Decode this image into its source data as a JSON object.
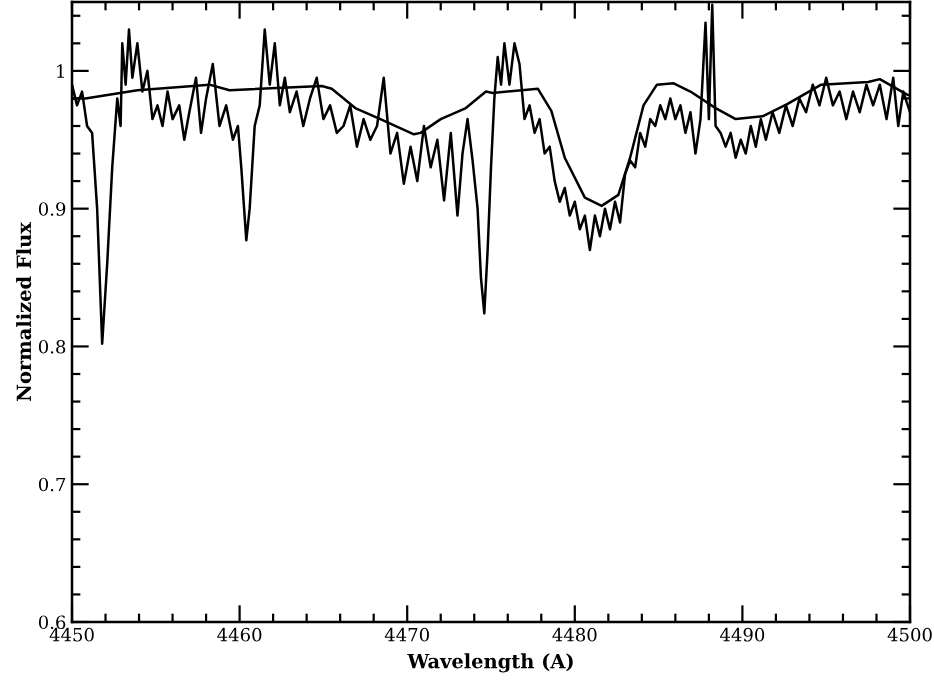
{
  "chart_data": {
    "type": "line",
    "xlabel": "Wavelength (A)",
    "ylabel": "Normalized Flux",
    "xlim": [
      4450,
      4500
    ],
    "ylim": [
      0.6,
      1.05
    ],
    "xticks": [
      4450,
      {
        "value": 4452,
        "label": null
      },
      {
        "value": 4454,
        "label": null
      },
      {
        "value": 4456,
        "label": null
      },
      {
        "value": 4458,
        "label": null
      },
      4460,
      {
        "value": 4462,
        "label": null
      },
      {
        "value": 4464,
        "label": null
      },
      {
        "value": 4466,
        "label": null
      },
      {
        "value": 4468,
        "label": null
      },
      4470,
      {
        "value": 4472,
        "label": null
      },
      {
        "value": 4474,
        "label": null
      },
      {
        "value": 4476,
        "label": null
      },
      {
        "value": 4478,
        "label": null
      },
      4480,
      {
        "value": 4482,
        "label": null
      },
      {
        "value": 4484,
        "label": null
      },
      {
        "value": 4486,
        "label": null
      },
      {
        "value": 4488,
        "label": null
      },
      4490,
      {
        "value": 4492,
        "label": null
      },
      {
        "value": 4494,
        "label": null
      },
      {
        "value": 4496,
        "label": null
      },
      {
        "value": 4498,
        "label": null
      },
      4500
    ],
    "yticks": [
      0.6,
      {
        "value": 0.62,
        "label": null
      },
      {
        "value": 0.64,
        "label": null
      },
      {
        "value": 0.66,
        "label": null
      },
      {
        "value": 0.68,
        "label": null
      },
      0.7,
      {
        "value": 0.72,
        "label": null
      },
      {
        "value": 0.74,
        "label": null
      },
      {
        "value": 0.76,
        "label": null
      },
      {
        "value": 0.78,
        "label": null
      },
      0.8,
      {
        "value": 0.82,
        "label": null
      },
      {
        "value": 0.84,
        "label": null
      },
      {
        "value": 0.86,
        "label": null
      },
      {
        "value": 0.88,
        "label": null
      },
      0.9,
      {
        "value": 0.92,
        "label": null
      },
      {
        "value": 0.94,
        "label": null
      },
      {
        "value": 0.96,
        "label": null
      },
      {
        "value": 0.98,
        "label": null
      },
      1,
      {
        "value": 1.02,
        "label": null
      },
      {
        "value": 1.04,
        "label": null
      }
    ],
    "grid": false,
    "marker": "none",
    "line_style": "solid",
    "series": [
      {
        "color": "#000000",
        "x": [
          4450.0,
          4450.3,
          4450.6,
          4450.9,
          4451.2,
          4451.5,
          4451.8,
          4452.1,
          4452.4,
          4452.7,
          4452.9,
          4453.0,
          4453.2,
          4453.4,
          4453.6,
          4453.9,
          4454.2,
          4454.5,
          4454.8,
          4455.1,
          4455.4,
          4455.7,
          4456.0,
          4456.4,
          4456.7,
          4457.0,
          4457.4,
          4457.7,
          4458.0,
          4458.4,
          4458.8,
          4459.2,
          4459.6,
          4459.9,
          4460.1,
          4460.4,
          4460.6,
          4460.9,
          4461.2,
          4461.5,
          4461.8,
          4462.1,
          4462.4,
          4462.7,
          4463.0,
          4463.4,
          4463.8,
          4464.2,
          4464.6,
          4465.0,
          4465.4,
          4465.8,
          4466.2,
          4466.6,
          4467.0,
          4467.4,
          4467.8,
          4468.2,
          4468.6,
          4469.0,
          4469.4,
          4469.8,
          4470.2,
          4470.6,
          4471.0,
          4471.4,
          4471.8,
          4472.2,
          4472.6,
          4473.0,
          4473.3,
          4473.6,
          4473.9,
          4474.2,
          4474.4,
          4474.6,
          4474.8,
          4475.0,
          4475.2,
          4475.4,
          4475.6,
          4475.8,
          4476.1,
          4476.4,
          4476.7,
          4477.0,
          4477.3,
          4477.6,
          4477.9,
          4478.2,
          4478.5,
          4478.8,
          4479.1,
          4479.4,
          4479.7,
          4480.0,
          4480.3,
          4480.6,
          4480.9,
          4481.2,
          4481.5,
          4481.8,
          4482.1,
          4482.4,
          4482.7,
          4483.0,
          4483.3,
          4483.6,
          4483.9,
          4484.2,
          4484.5,
          4484.8,
          4485.1,
          4485.4,
          4485.7,
          4486.0,
          4486.3,
          4486.6,
          4486.9,
          4487.2,
          4487.5,
          4487.8,
          4488.0,
          4488.2,
          4488.4,
          4488.7,
          4489.0,
          4489.3,
          4489.6,
          4489.9,
          4490.2,
          4490.5,
          4490.8,
          4491.1,
          4491.4,
          4491.8,
          4492.2,
          4492.6,
          4493.0,
          4493.4,
          4493.8,
          4494.2,
          4494.6,
          4495.0,
          4495.4,
          4495.8,
          4496.2,
          4496.6,
          4497.0,
          4497.4,
          4497.8,
          4498.2,
          4498.6,
          4499.0,
          4499.3,
          4499.6,
          4500.0
        ],
        "values": [
          0.99,
          0.975,
          0.985,
          0.96,
          0.955,
          0.9,
          0.802,
          0.86,
          0.93,
          0.98,
          0.96,
          1.02,
          0.99,
          1.03,
          0.995,
          1.02,
          0.985,
          1.0,
          0.965,
          0.975,
          0.96,
          0.985,
          0.965,
          0.975,
          0.95,
          0.97,
          0.995,
          0.955,
          0.98,
          1.005,
          0.96,
          0.975,
          0.95,
          0.96,
          0.93,
          0.877,
          0.9,
          0.96,
          0.975,
          1.03,
          0.99,
          1.02,
          0.975,
          0.995,
          0.97,
          0.985,
          0.96,
          0.98,
          0.995,
          0.965,
          0.975,
          0.955,
          0.96,
          0.975,
          0.945,
          0.965,
          0.95,
          0.96,
          0.995,
          0.94,
          0.955,
          0.918,
          0.945,
          0.92,
          0.96,
          0.93,
          0.95,
          0.906,
          0.955,
          0.895,
          0.94,
          0.965,
          0.935,
          0.9,
          0.85,
          0.824,
          0.87,
          0.93,
          0.98,
          1.01,
          0.99,
          1.02,
          0.99,
          1.02,
          1.005,
          0.965,
          0.975,
          0.955,
          0.965,
          0.94,
          0.945,
          0.92,
          0.905,
          0.915,
          0.895,
          0.905,
          0.885,
          0.895,
          0.87,
          0.895,
          0.88,
          0.9,
          0.885,
          0.905,
          0.89,
          0.925,
          0.935,
          0.93,
          0.955,
          0.945,
          0.965,
          0.96,
          0.975,
          0.965,
          0.98,
          0.965,
          0.975,
          0.955,
          0.97,
          0.94,
          0.965,
          1.035,
          0.965,
          1.048,
          0.96,
          0.955,
          0.945,
          0.955,
          0.937,
          0.95,
          0.94,
          0.96,
          0.945,
          0.965,
          0.95,
          0.97,
          0.955,
          0.975,
          0.96,
          0.98,
          0.97,
          0.99,
          0.975,
          0.995,
          0.975,
          0.985,
          0.965,
          0.985,
          0.97,
          0.99,
          0.975,
          0.99,
          0.965,
          0.995,
          0.96,
          0.985,
          0.97
        ]
      },
      {
        "color": "#000000",
        "x": [
          4450.0,
          4450.8,
          4453.9,
          4458.2,
          4459.4,
          4464.9,
          4465.5,
          4466.9,
          4468.4,
          4470.4,
          4470.8,
          4472.0,
          4473.5,
          4474.7,
          4475.1,
          4477.8,
          4478.6,
          4479.4,
          4480.6,
          4481.6,
          4482.6,
          4483.3,
          4484.1,
          4484.9,
          4485.9,
          4486.9,
          4488.4,
          4489.6,
          4491.2,
          4492.7,
          4494.7,
          4497.5,
          4498.2,
          4499.8,
          4500.0
        ],
        "values": [
          0.98,
          0.98,
          0.986,
          0.99,
          0.986,
          0.989,
          0.987,
          0.973,
          0.965,
          0.954,
          0.955,
          0.965,
          0.973,
          0.985,
          0.984,
          0.987,
          0.971,
          0.937,
          0.908,
          0.902,
          0.91,
          0.937,
          0.975,
          0.99,
          0.991,
          0.985,
          0.973,
          0.965,
          0.967,
          0.976,
          0.99,
          0.992,
          0.994,
          0.983,
          0.982
        ]
      }
    ]
  }
}
